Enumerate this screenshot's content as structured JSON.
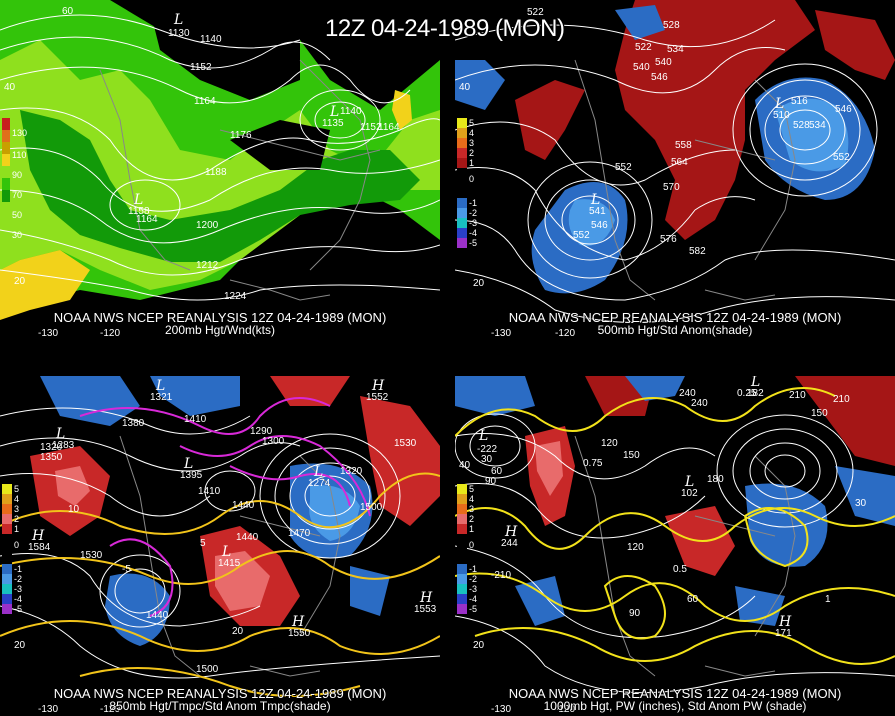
{
  "title": "12Z 04-24-1989 (MON)",
  "panels": [
    {
      "source": "NOAA NWS NCEP REANALYSIS 12Z 04-24-1989 (MON)",
      "field": "200mb Hgt/Wnd(kts)",
      "legend": [
        "130",
        "110",
        "90",
        "70",
        "50",
        "30"
      ],
      "contours": [
        "1140",
        "1152",
        "1164",
        "1176",
        "1188",
        "1200",
        "1212",
        "1224",
        "1164",
        "1140",
        "1152",
        "1164"
      ],
      "lows": [
        {
          "label": "L",
          "value": "1130"
        },
        {
          "label": "L",
          "value": "1135"
        },
        {
          "label": "L",
          "value": "1158"
        }
      ],
      "lonlat": [
        "60",
        "40",
        "20",
        "-130",
        "-120"
      ]
    },
    {
      "source": "NOAA NWS NCEP REANALYSIS 12Z 04-24-1989 (MON)",
      "field": "500mb Hgt/Std Anom(shade)",
      "legend": [
        "5",
        "4",
        "3",
        "2",
        "1",
        "0",
        "-1",
        "-2",
        "-3",
        "-4",
        "-5"
      ],
      "contours": [
        "522",
        "540",
        "546",
        "552",
        "558",
        "564",
        "570",
        "576",
        "582",
        "552",
        "546",
        "528",
        "534",
        "516",
        "522",
        "528",
        "534",
        "540",
        "546",
        "552"
      ],
      "lows": [
        {
          "label": "L",
          "value": "541"
        },
        {
          "label": "L",
          "value": "510"
        }
      ],
      "lonlat": [
        "40",
        "20",
        "-130",
        "-120"
      ]
    },
    {
      "source": "NOAA NWS NCEP REANALYSIS 12Z 04-24-1989 (MON)",
      "field": "850mb Hgt/Tmpc/Std Anom Tmpc(shade)",
      "legend": [
        "5",
        "4",
        "3",
        "2",
        "1",
        "0",
        "-1",
        "-2",
        "-3",
        "-4",
        "-5"
      ],
      "contours": [
        "1470",
        "1320",
        "1350",
        "1380",
        "1410",
        "1440",
        "1470",
        "1500",
        "1530",
        "1440",
        "1530",
        "1500",
        "1410",
        "1440",
        "1320",
        "1290",
        "1300",
        "10",
        "5",
        "20",
        "-5"
      ],
      "lows": [
        {
          "label": "L",
          "value": "1283"
        },
        {
          "label": "L",
          "value": "1321"
        },
        {
          "label": "L",
          "value": "1395"
        },
        {
          "label": "L",
          "value": "1274"
        },
        {
          "label": "L",
          "value": "1415"
        }
      ],
      "highs": [
        {
          "label": "H",
          "value": "1552"
        },
        {
          "label": "H",
          "value": "1584"
        },
        {
          "label": "H",
          "value": "1553"
        },
        {
          "label": "H",
          "value": "1550"
        }
      ],
      "lonlat": [
        "20",
        "-130",
        "-120"
      ]
    },
    {
      "source": "NOAA NWS NCEP REANALYSIS 12Z 04-24-1989 (MON)",
      "field": "1000mb Hgt, PW (inches), Std Anom PW (shade)",
      "legend": [
        "5",
        "4",
        "3",
        "2",
        "1",
        "0",
        "-1",
        "-2",
        "-3",
        "-4",
        "-5"
      ],
      "contours": [
        "30",
        "60",
        "90",
        "120",
        "150",
        "180",
        "210",
        "240",
        "240",
        "210",
        "150",
        "120",
        "90",
        "60",
        "30",
        "-210",
        "0.25",
        "0.5",
        "0.75",
        "1"
      ],
      "lows": [
        {
          "label": "L",
          "value": "-222"
        },
        {
          "label": "L",
          "value": "102"
        },
        {
          "label": "L",
          "value": "182"
        }
      ],
      "highs": [
        {
          "label": "H",
          "value": "244"
        },
        {
          "label": "H",
          "value": "171"
        }
      ],
      "lonlat": [
        "40",
        "20",
        "-130",
        "-120"
      ]
    }
  ]
}
